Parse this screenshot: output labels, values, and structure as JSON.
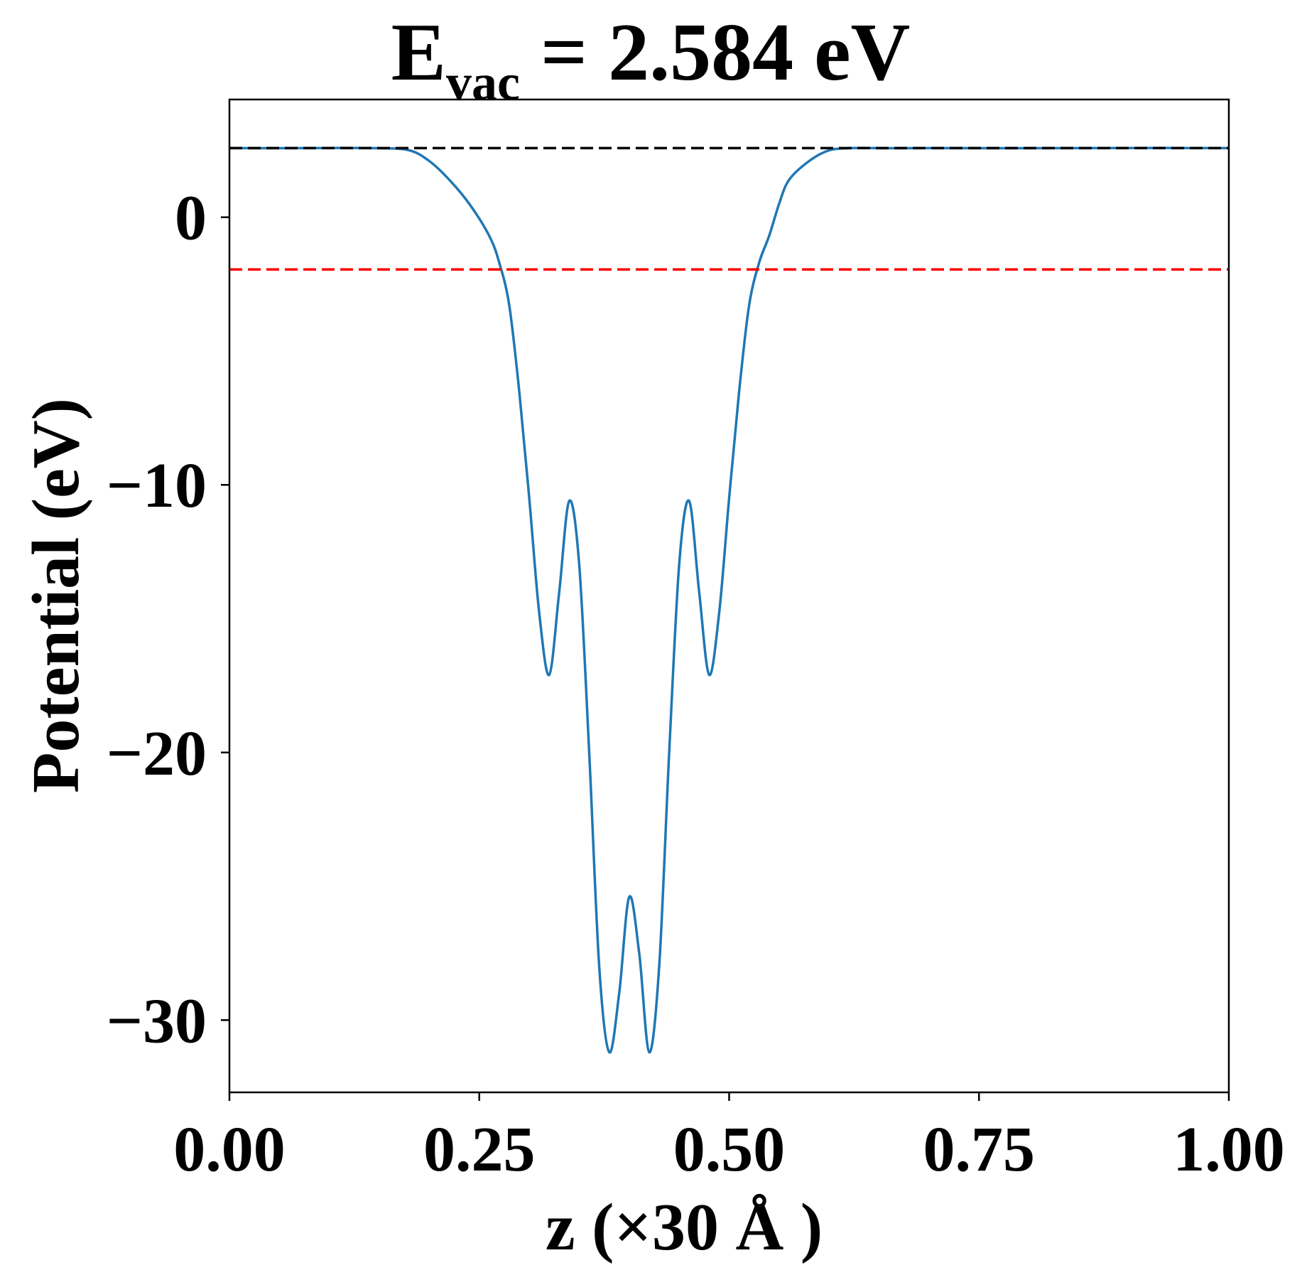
{
  "chart_data": {
    "type": "line",
    "title": {
      "prefix": "E",
      "subscript": "vac",
      "suffix": " = 2.584 eV"
    },
    "xlabel": "z (×30 Å )",
    "ylabel": "Potential (eV)",
    "xlim": [
      0.0,
      1.0
    ],
    "ylim": [
      -32.7,
      4.4
    ],
    "xticks": [
      {
        "value": 0.0,
        "label": "0.00"
      },
      {
        "value": 0.25,
        "label": "0.25"
      },
      {
        "value": 0.5,
        "label": "0.50"
      },
      {
        "value": 0.75,
        "label": "0.75"
      },
      {
        "value": 1.0,
        "label": "1.00"
      }
    ],
    "yticks": [
      {
        "value": 0,
        "label": "0"
      },
      {
        "value": -10,
        "label": "−10"
      },
      {
        "value": -20,
        "label": "−20"
      },
      {
        "value": -30,
        "label": "−30"
      }
    ],
    "grid": false,
    "series": [
      {
        "color": "#1f77b4",
        "style": "solid",
        "x": [
          0.0,
          0.05,
          0.1,
          0.15,
          0.18,
          0.2,
          0.22,
          0.24,
          0.26,
          0.27,
          0.28,
          0.29,
          0.3,
          0.31,
          0.32,
          0.33,
          0.34,
          0.35,
          0.36,
          0.37,
          0.38,
          0.39,
          0.4,
          0.41,
          0.42,
          0.43,
          0.44,
          0.45,
          0.46,
          0.47,
          0.48,
          0.49,
          0.5,
          0.51,
          0.52,
          0.53,
          0.54,
          0.55,
          0.56,
          0.58,
          0.6,
          0.62,
          0.64,
          0.66,
          0.7,
          0.8,
          0.9,
          1.0
        ],
        "y": [
          2.584,
          2.58,
          2.59,
          2.58,
          2.5,
          2.1,
          1.4,
          0.5,
          -0.7,
          -1.7,
          -3.3,
          -6.5,
          -10.5,
          -14.8,
          -17.1,
          -14.0,
          -10.6,
          -13.0,
          -20.0,
          -28.0,
          -31.2,
          -29.0,
          -25.4,
          -27.5,
          -31.2,
          -28.0,
          -20.0,
          -13.0,
          -10.6,
          -14.0,
          -17.1,
          -14.8,
          -10.5,
          -6.5,
          -3.3,
          -1.7,
          -0.7,
          0.5,
          1.4,
          2.1,
          2.5,
          2.58,
          2.59,
          2.58,
          2.584,
          2.58,
          2.59,
          2.584
        ]
      },
      {
        "color": "#000000",
        "style": "dashed",
        "x": [
          0.0,
          1.0
        ],
        "y": [
          2.584,
          2.584
        ]
      },
      {
        "color": "#ff0000",
        "style": "dashed",
        "x": [
          0.0,
          1.0
        ],
        "y": [
          -1.95,
          -1.95
        ]
      }
    ]
  }
}
